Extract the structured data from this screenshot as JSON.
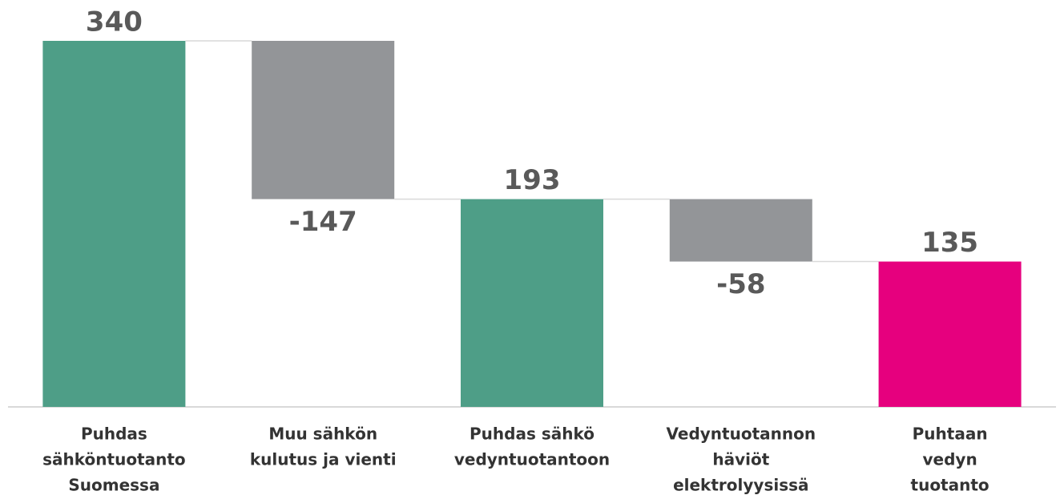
{
  "chart_data": {
    "type": "waterfall",
    "categories": [
      [
        "Puhdas",
        "sähköntuotanto",
        "Suomessa"
      ],
      [
        "Muu sähkön",
        "kulutus ja vienti"
      ],
      [
        "Puhdas sähkö",
        "vedyntuotantoon"
      ],
      [
        "Vedyntuotannon",
        "häviöt",
        "elektrolyysissä"
      ],
      [
        "Puhtaan",
        "vedyn",
        "tuotanto"
      ]
    ],
    "values": [
      340,
      -147,
      193,
      -58,
      135
    ],
    "measures": [
      "absolute",
      "relative",
      "absolute",
      "relative",
      "absolute"
    ],
    "colors": [
      "#4e9e87",
      "#939598",
      "#4e9e87",
      "#939598",
      "#e6007e"
    ],
    "ylim": [
      0,
      340
    ]
  }
}
